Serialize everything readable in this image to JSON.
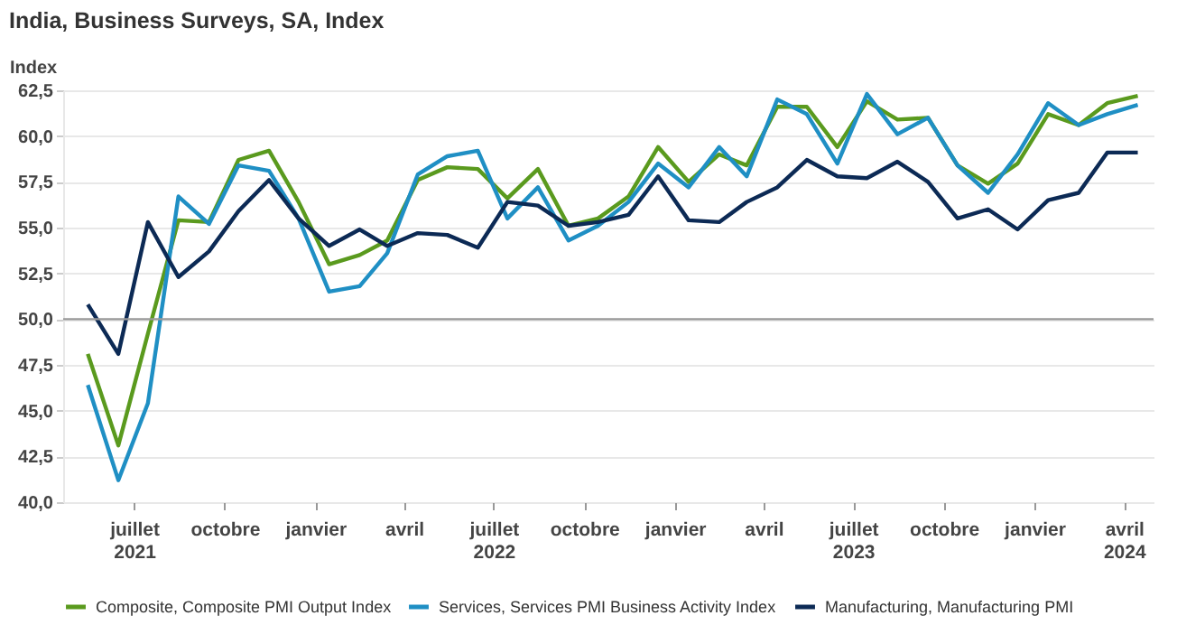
{
  "chart_data": {
    "type": "line",
    "title": "India, Business Surveys, SA, Index",
    "ylabel": "Index",
    "x": [
      "2021-05-15",
      "2021-06-15",
      "2021-07-15",
      "2021-08-15",
      "2021-09-15",
      "2021-10-15",
      "2021-11-15",
      "2021-12-15",
      "2022-01-15",
      "2022-02-15",
      "2022-03-15",
      "2022-04-15",
      "2022-05-15",
      "2022-06-15",
      "2022-07-15",
      "2022-08-15",
      "2022-09-15",
      "2022-10-15",
      "2022-11-15",
      "2022-12-15",
      "2023-01-15",
      "2023-02-15",
      "2023-03-15",
      "2023-04-15",
      "2023-05-15",
      "2023-06-15",
      "2023-07-15",
      "2023-08-15",
      "2023-09-15",
      "2023-10-15",
      "2023-11-15",
      "2023-12-15",
      "2024-01-15",
      "2024-02-15",
      "2024-03-15",
      "2024-04-15"
    ],
    "series": [
      {
        "name": "Composite, Composite PMI Output Index",
        "color": "#5a9a1e",
        "values": [
          48.1,
          43.1,
          49.2,
          55.4,
          55.3,
          58.7,
          59.2,
          56.4,
          53.0,
          53.5,
          54.3,
          57.6,
          58.3,
          58.2,
          56.6,
          58.2,
          55.1,
          55.5,
          56.7,
          59.4,
          57.5,
          59.0,
          58.4,
          61.6,
          61.6,
          59.4,
          61.9,
          60.9,
          61.0,
          58.4,
          57.4,
          58.5,
          61.2,
          60.6,
          61.8,
          62.2
        ]
      },
      {
        "name": "Services, Services PMI Business Activity Index",
        "color": "#1f8fc4",
        "values": [
          46.4,
          41.2,
          45.4,
          56.7,
          55.2,
          58.4,
          58.1,
          55.5,
          51.5,
          51.8,
          53.6,
          57.9,
          58.9,
          59.2,
          55.5,
          57.2,
          54.3,
          55.1,
          56.4,
          58.5,
          57.2,
          59.4,
          57.8,
          62.0,
          61.2,
          58.5,
          62.3,
          60.1,
          61.0,
          58.4,
          56.9,
          59.0,
          61.8,
          60.6,
          61.2,
          61.7
        ]
      },
      {
        "name": "Manufacturing, Manufacturing PMI",
        "color": "#0c2a55",
        "values": [
          50.8,
          48.1,
          55.3,
          52.3,
          53.7,
          55.9,
          57.6,
          55.5,
          54.0,
          54.9,
          54.0,
          54.7,
          54.6,
          53.9,
          56.4,
          56.2,
          55.1,
          55.3,
          55.7,
          57.8,
          55.4,
          55.3,
          56.4,
          57.2,
          58.7,
          57.8,
          57.7,
          58.6,
          57.5,
          55.5,
          56.0,
          54.9,
          56.5,
          56.9,
          59.1,
          59.1
        ]
      }
    ],
    "xlim": [
      "2021-04-20",
      "2024-05-01"
    ],
    "xticks": [
      {
        "value": "2021-07-01",
        "label": "juillet\n2021"
      },
      {
        "value": "2021-10-01",
        "label": "octobre"
      },
      {
        "value": "2022-01-01",
        "label": "janvier"
      },
      {
        "value": "2022-04-01",
        "label": "avril"
      },
      {
        "value": "2022-07-01",
        "label": "juillet\n2022"
      },
      {
        "value": "2022-10-01",
        "label": "octobre"
      },
      {
        "value": "2023-01-01",
        "label": "janvier"
      },
      {
        "value": "2023-04-01",
        "label": "avril"
      },
      {
        "value": "2023-07-01",
        "label": "juillet\n2023"
      },
      {
        "value": "2023-10-01",
        "label": "octobre"
      },
      {
        "value": "2024-01-01",
        "label": "janvier"
      },
      {
        "value": "2024-04-01",
        "label": "avril\n2024"
      }
    ],
    "ylim": [
      40,
      62.5
    ],
    "yticks": [
      {
        "value": 40,
        "label": "40,0"
      },
      {
        "value": 42.5,
        "label": "42,5"
      },
      {
        "value": 45,
        "label": "45,0"
      },
      {
        "value": 47.5,
        "label": "47,5"
      },
      {
        "value": 50,
        "label": "50,0"
      },
      {
        "value": 52.5,
        "label": "52,5"
      },
      {
        "value": 55,
        "label": "55,0"
      },
      {
        "value": 57.5,
        "label": "57,5"
      },
      {
        "value": 60,
        "label": "60,0"
      },
      {
        "value": 62.5,
        "label": "62,5"
      }
    ],
    "ref_lines": [
      {
        "axis": "y",
        "value": 50,
        "color": "#999999"
      }
    ],
    "grid": "y",
    "legend": "bottom",
    "line_style": "solid",
    "marker": "none"
  }
}
